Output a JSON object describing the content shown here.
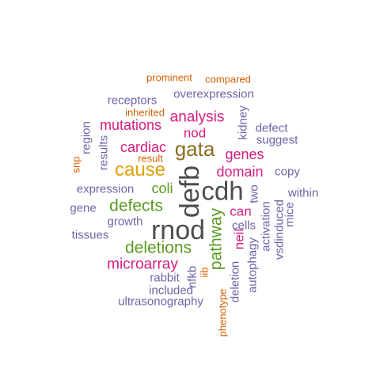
{
  "palette": {
    "dark_gray": "#4d4d4d",
    "brown": "#8c6d1f",
    "gold": "#e0a00c",
    "green": "#5b9b23",
    "magenta": "#d41d7f",
    "purple": "#6a66a8",
    "orange": "#d55e00"
  },
  "words": {
    "rnod": "rnod",
    "cdh": "cdh",
    "defb": "defb",
    "gata": "gata",
    "cause": "cause",
    "defects": "defects",
    "deletions": "deletions",
    "pathway": "pathway",
    "microarray": "microarray",
    "analysis": "analysis",
    "mutations": "mutations",
    "cardiac": "cardiac",
    "genes": "genes",
    "domain": "domain",
    "nod": "nod",
    "coli": "coli",
    "can": "can",
    "neil": "neil",
    "overexpression": "overexpression",
    "receptors": "receptors",
    "prominent": "prominent",
    "compared": "compared",
    "inherited": "inherited",
    "kidney": "kidney",
    "defect": "defect",
    "suggest": "suggest",
    "region": "region",
    "results": "results",
    "snp": "snp",
    "result": "result",
    "copy": "copy",
    "within": "within",
    "two": "two",
    "cells": "cells",
    "expression": "expression",
    "gene": "gene",
    "growth": "growth",
    "tissues": "tissues",
    "mice": "mice",
    "vsdinduced": "vsdinduced",
    "activation": "activation",
    "autophagy": "autophagy",
    "deletion": "deletion",
    "phenotype": "phenotype",
    "iib": "iib",
    "nfkb": "nfkb",
    "rabbit": "rabbit",
    "included": "included",
    "ultrasonography": "ultrasonography"
  }
}
